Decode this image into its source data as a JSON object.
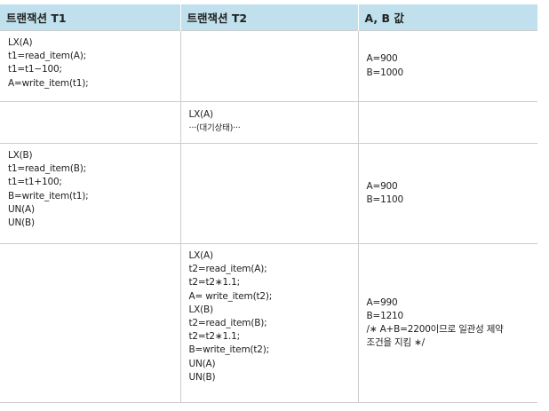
{
  "header": [
    "트랜잭션 T1",
    "트랜잭션 T2",
    "A, B 값"
  ],
  "rows": [
    {
      "t1": [
        "LX(A)",
        "t1=read_item(A);",
        "t1=t1−100;",
        "A=write_item(t1);"
      ],
      "t2": [],
      "ab": [
        "A=900",
        "B=1000"
      ]
    },
    {
      "t1": [],
      "t2": [
        "LX(A)",
        "···(대기상태)···"
      ],
      "ab": []
    },
    {
      "t1": [
        "LX(B)",
        "t1=read_item(B);",
        "t1=t1+100;",
        "B=write_item(t1);",
        "UN(A)",
        "UN(B)"
      ],
      "t2": [],
      "ab": [
        "A=900",
        "B=1100"
      ]
    },
    {
      "t1": [],
      "t2": [
        "LX(A)",
        "t2=read_item(A);",
        "t2=t2∗1.1;",
        "A= write_item(t2);",
        "LX(B)",
        "t2=read_item(B);",
        "t2=t2∗1.1;",
        "B=write_item(t2);",
        "UN(A)",
        "UN(B)"
      ],
      "ab": [
        "A=990",
        "B=1210",
        "/∗ A+B=2200이므로 일관성 제약",
        "조건을 지킴 ∗/"
      ]
    }
  ]
}
